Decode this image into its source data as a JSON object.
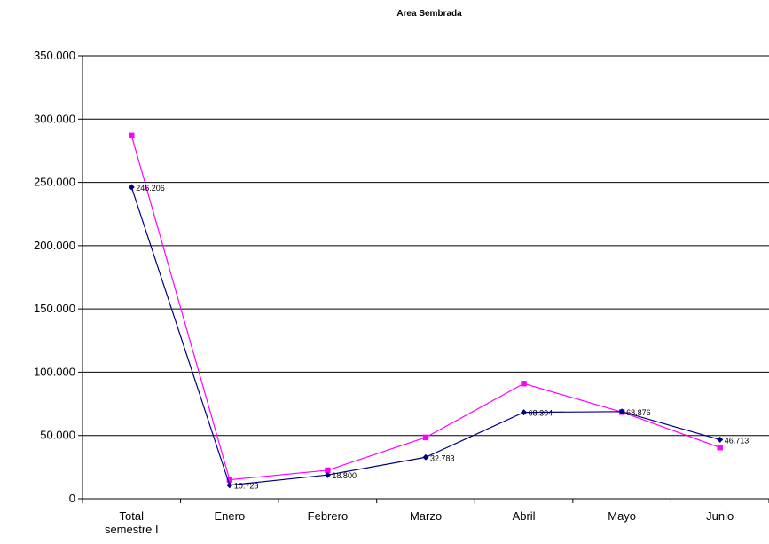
{
  "chart_data": {
    "type": "line",
    "title": "Area Sembrada",
    "xlabel": "",
    "ylabel": "",
    "categories": [
      "Total\nsemestre I",
      "Enero",
      "Febrero",
      "Marzo",
      "Abril",
      "Mayo",
      "Junio"
    ],
    "ylim": [
      0,
      350000
    ],
    "yticks": [
      0,
      50000,
      100000,
      150000,
      200000,
      250000,
      300000,
      350000
    ],
    "ytick_labels": [
      "0",
      "50.000",
      "100.000",
      "150.000",
      "200.000",
      "250.000",
      "300.000",
      "350.000"
    ],
    "grid": true,
    "legend": "none",
    "series": [
      {
        "values": [
          246206,
          10728,
          18800,
          32783,
          68304,
          68876,
          46713
        ],
        "data_labels": [
          "246.206",
          "10.728",
          "18.800",
          "32.783",
          "68.304",
          "68.876",
          "46.713"
        ],
        "color": "#000080",
        "marker": "diamond"
      },
      {
        "values": [
          287000,
          15000,
          22500,
          48500,
          91000,
          68500,
          40500
        ],
        "color": "#FF00FF",
        "marker": "square"
      }
    ]
  }
}
